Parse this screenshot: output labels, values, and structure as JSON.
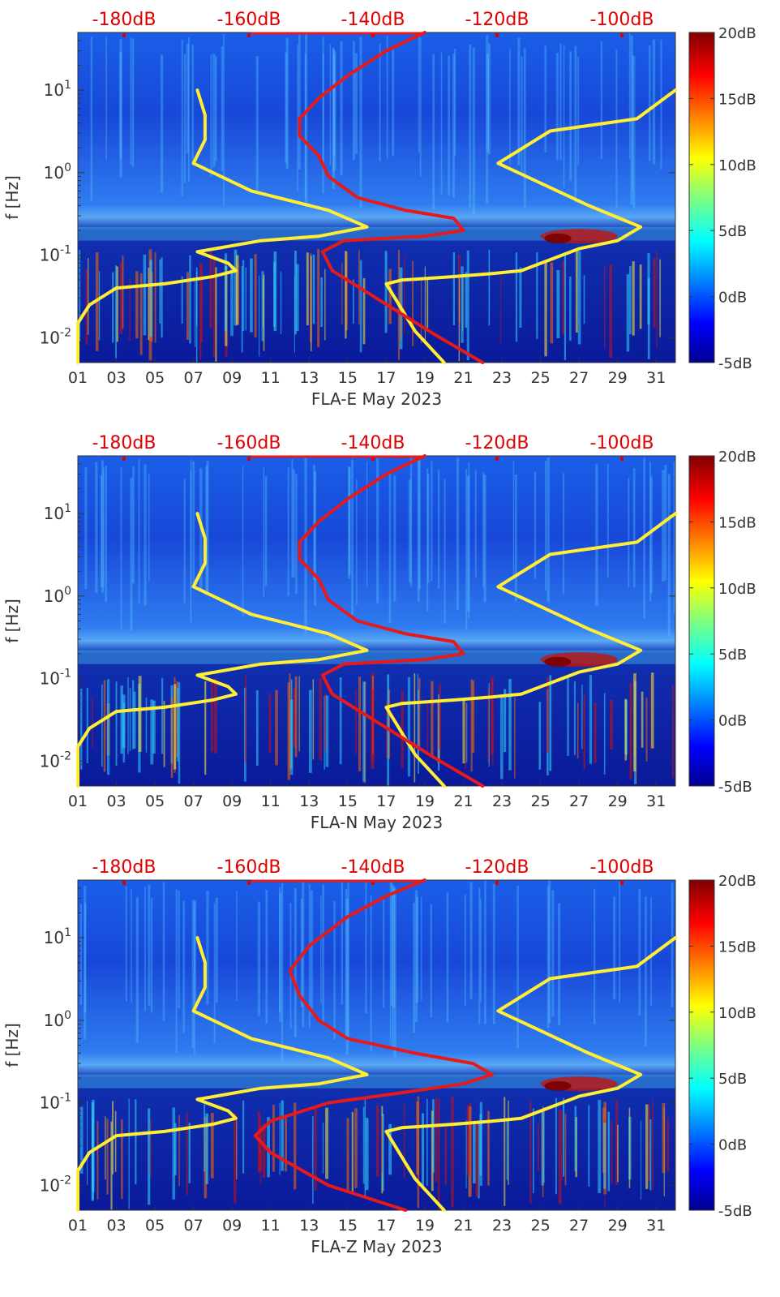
{
  "chart_data": [
    {
      "type": "heatmap",
      "title": "",
      "xlabel": "FLA-E May 2023",
      "ylabel": "f [Hz]",
      "xlim": [
        1,
        32
      ],
      "ylim": [
        0.005,
        50
      ],
      "y_scale": "log",
      "x_ticks": [
        "01",
        "03",
        "05",
        "07",
        "09",
        "11",
        "13",
        "15",
        "17",
        "19",
        "21",
        "23",
        "25",
        "27",
        "29",
        "31"
      ],
      "y_ticks": [
        "10^-2",
        "10^-1",
        "10^0",
        "10^1"
      ],
      "top_axis_ticks": [
        "-180dB",
        "-160dB",
        "-140dB",
        "-120dB",
        "-100dB"
      ],
      "top_axis_color": "#e00000",
      "colorbar": {
        "ticks": [
          "20dB",
          "15dB",
          "10dB",
          "5dB",
          "0dB",
          "-5dB"
        ],
        "range": [
          -5,
          20
        ],
        "colormap": "jet"
      },
      "series": [
        {
          "color": "#ffee33",
          "points": [
            [
              1.0,
              0.005
            ],
            [
              1.0,
              0.015
            ],
            [
              1.6,
              0.025
            ],
            [
              3.0,
              0.04
            ],
            [
              5.5,
              0.045
            ],
            [
              8.0,
              0.055
            ],
            [
              9.2,
              0.065
            ],
            [
              8.8,
              0.08
            ],
            [
              7.2,
              0.11
            ],
            [
              10.5,
              0.15
            ],
            [
              13.5,
              0.17
            ],
            [
              16.0,
              0.22
            ],
            [
              14.0,
              0.35
            ],
            [
              10.0,
              0.6
            ],
            [
              7.0,
              1.3
            ],
            [
              7.6,
              2.5
            ],
            [
              7.6,
              5.0
            ],
            [
              7.2,
              10.0
            ]
          ]
        },
        {
          "color": "#ffee33",
          "points": [
            [
              20.0,
              0.005
            ],
            [
              18.5,
              0.012
            ],
            [
              17.0,
              0.045
            ],
            [
              17.8,
              0.05
            ],
            [
              20.5,
              0.055
            ],
            [
              22.5,
              0.06
            ],
            [
              24.0,
              0.065
            ],
            [
              27.0,
              0.12
            ],
            [
              29.0,
              0.15
            ],
            [
              30.2,
              0.22
            ],
            [
              27.5,
              0.4
            ],
            [
              22.8,
              1.3
            ],
            [
              25.5,
              3.2
            ],
            [
              30.0,
              4.5
            ],
            [
              32.0,
              10.0
            ]
          ]
        },
        {
          "color": "#e61a1a",
          "points": [
            [
              22.0,
              0.005
            ],
            [
              19.5,
              0.011
            ],
            [
              16.5,
              0.03
            ],
            [
              14.2,
              0.065
            ],
            [
              13.7,
              0.11
            ],
            [
              14.8,
              0.15
            ],
            [
              19.0,
              0.17
            ],
            [
              21.0,
              0.2
            ],
            [
              20.5,
              0.28
            ],
            [
              18.0,
              0.35
            ],
            [
              15.5,
              0.5
            ],
            [
              14.0,
              0.9
            ],
            [
              13.5,
              1.6
            ],
            [
              12.5,
              2.8
            ],
            [
              12.5,
              4.5
            ],
            [
              13.5,
              8.0
            ],
            [
              15.0,
              15.0
            ],
            [
              17.0,
              30.0
            ],
            [
              19.0,
              50.0
            ]
          ]
        }
      ]
    },
    {
      "type": "heatmap",
      "title": "",
      "xlabel": "FLA-N May 2023",
      "ylabel": "f [Hz]",
      "xlim": [
        1,
        32
      ],
      "ylim": [
        0.005,
        50
      ],
      "y_scale": "log",
      "x_ticks": [
        "01",
        "03",
        "05",
        "07",
        "09",
        "11",
        "13",
        "15",
        "17",
        "19",
        "21",
        "23",
        "25",
        "27",
        "29",
        "31"
      ],
      "y_ticks": [
        "10^-2",
        "10^-1",
        "10^0",
        "10^1"
      ],
      "top_axis_ticks": [
        "-180dB",
        "-160dB",
        "-140dB",
        "-120dB",
        "-100dB"
      ],
      "top_axis_color": "#e00000",
      "colorbar": {
        "ticks": [
          "20dB",
          "15dB",
          "10dB",
          "5dB",
          "0dB",
          "-5dB"
        ],
        "range": [
          -5,
          20
        ],
        "colormap": "jet"
      },
      "series": [
        {
          "color": "#ffee33",
          "points": [
            [
              1.0,
              0.005
            ],
            [
              1.0,
              0.015
            ],
            [
              1.6,
              0.025
            ],
            [
              3.0,
              0.04
            ],
            [
              5.5,
              0.045
            ],
            [
              8.0,
              0.055
            ],
            [
              9.2,
              0.065
            ],
            [
              8.8,
              0.08
            ],
            [
              7.2,
              0.11
            ],
            [
              10.5,
              0.15
            ],
            [
              13.5,
              0.17
            ],
            [
              16.0,
              0.22
            ],
            [
              14.0,
              0.35
            ],
            [
              10.0,
              0.6
            ],
            [
              7.0,
              1.3
            ],
            [
              7.6,
              2.5
            ],
            [
              7.6,
              5.0
            ],
            [
              7.2,
              10.0
            ]
          ]
        },
        {
          "color": "#ffee33",
          "points": [
            [
              20.0,
              0.005
            ],
            [
              18.5,
              0.012
            ],
            [
              17.0,
              0.045
            ],
            [
              17.8,
              0.05
            ],
            [
              20.5,
              0.055
            ],
            [
              22.5,
              0.06
            ],
            [
              24.0,
              0.065
            ],
            [
              27.0,
              0.12
            ],
            [
              29.0,
              0.15
            ],
            [
              30.2,
              0.22
            ],
            [
              27.5,
              0.4
            ],
            [
              22.8,
              1.3
            ],
            [
              25.5,
              3.2
            ],
            [
              30.0,
              4.5
            ],
            [
              32.0,
              10.0
            ]
          ]
        },
        {
          "color": "#e61a1a",
          "points": [
            [
              22.0,
              0.005
            ],
            [
              19.5,
              0.011
            ],
            [
              16.5,
              0.03
            ],
            [
              14.2,
              0.065
            ],
            [
              13.7,
              0.11
            ],
            [
              14.8,
              0.15
            ],
            [
              19.0,
              0.17
            ],
            [
              21.0,
              0.2
            ],
            [
              20.5,
              0.28
            ],
            [
              18.0,
              0.35
            ],
            [
              15.5,
              0.5
            ],
            [
              14.0,
              0.9
            ],
            [
              13.5,
              1.6
            ],
            [
              12.5,
              2.8
            ],
            [
              12.5,
              4.5
            ],
            [
              13.5,
              8.0
            ],
            [
              15.0,
              15.0
            ],
            [
              17.0,
              30.0
            ],
            [
              19.0,
              50.0
            ]
          ]
        }
      ]
    },
    {
      "type": "heatmap",
      "title": "",
      "xlabel": "FLA-Z May 2023",
      "ylabel": "f [Hz]",
      "xlim": [
        1,
        32
      ],
      "ylim": [
        0.005,
        50
      ],
      "y_scale": "log",
      "x_ticks": [
        "01",
        "03",
        "05",
        "07",
        "09",
        "11",
        "13",
        "15",
        "17",
        "19",
        "21",
        "23",
        "25",
        "27",
        "29",
        "31"
      ],
      "y_ticks": [
        "10^-2",
        "10^-1",
        "10^0",
        "10^1"
      ],
      "top_axis_ticks": [
        "-180dB",
        "-160dB",
        "-140dB",
        "-120dB",
        "-100dB"
      ],
      "top_axis_color": "#e00000",
      "colorbar": {
        "ticks": [
          "20dB",
          "15dB",
          "10dB",
          "5dB",
          "0dB",
          "-5dB"
        ],
        "range": [
          -5,
          20
        ],
        "colormap": "jet"
      },
      "series": [
        {
          "color": "#ffee33",
          "points": [
            [
              1.0,
              0.005
            ],
            [
              1.0,
              0.015
            ],
            [
              1.6,
              0.025
            ],
            [
              3.0,
              0.04
            ],
            [
              5.5,
              0.045
            ],
            [
              8.0,
              0.055
            ],
            [
              9.2,
              0.065
            ],
            [
              8.8,
              0.08
            ],
            [
              7.2,
              0.11
            ],
            [
              10.5,
              0.15
            ],
            [
              13.5,
              0.17
            ],
            [
              16.0,
              0.22
            ],
            [
              14.0,
              0.35
            ],
            [
              10.0,
              0.6
            ],
            [
              7.0,
              1.3
            ],
            [
              7.6,
              2.5
            ],
            [
              7.6,
              5.0
            ],
            [
              7.2,
              10.0
            ]
          ]
        },
        {
          "color": "#ffee33",
          "points": [
            [
              20.0,
              0.005
            ],
            [
              18.5,
              0.012
            ],
            [
              17.0,
              0.045
            ],
            [
              17.8,
              0.05
            ],
            [
              20.5,
              0.055
            ],
            [
              22.5,
              0.06
            ],
            [
              24.0,
              0.065
            ],
            [
              27.0,
              0.12
            ],
            [
              29.0,
              0.15
            ],
            [
              30.2,
              0.22
            ],
            [
              27.5,
              0.4
            ],
            [
              22.8,
              1.3
            ],
            [
              25.5,
              3.2
            ],
            [
              30.0,
              4.5
            ],
            [
              32.0,
              10.0
            ]
          ]
        },
        {
          "color": "#e61a1a",
          "points": [
            [
              18.0,
              0.005
            ],
            [
              14.0,
              0.01
            ],
            [
              11.0,
              0.025
            ],
            [
              10.2,
              0.04
            ],
            [
              11.0,
              0.06
            ],
            [
              14.0,
              0.1
            ],
            [
              18.5,
              0.14
            ],
            [
              21.0,
              0.17
            ],
            [
              22.5,
              0.22
            ],
            [
              21.5,
              0.3
            ],
            [
              18.5,
              0.4
            ],
            [
              15.0,
              0.6
            ],
            [
              13.5,
              1.0
            ],
            [
              12.5,
              2.0
            ],
            [
              12.0,
              4.0
            ],
            [
              13.0,
              8.0
            ],
            [
              15.0,
              18.0
            ],
            [
              17.0,
              32.0
            ],
            [
              19.0,
              50.0
            ]
          ]
        }
      ]
    }
  ]
}
